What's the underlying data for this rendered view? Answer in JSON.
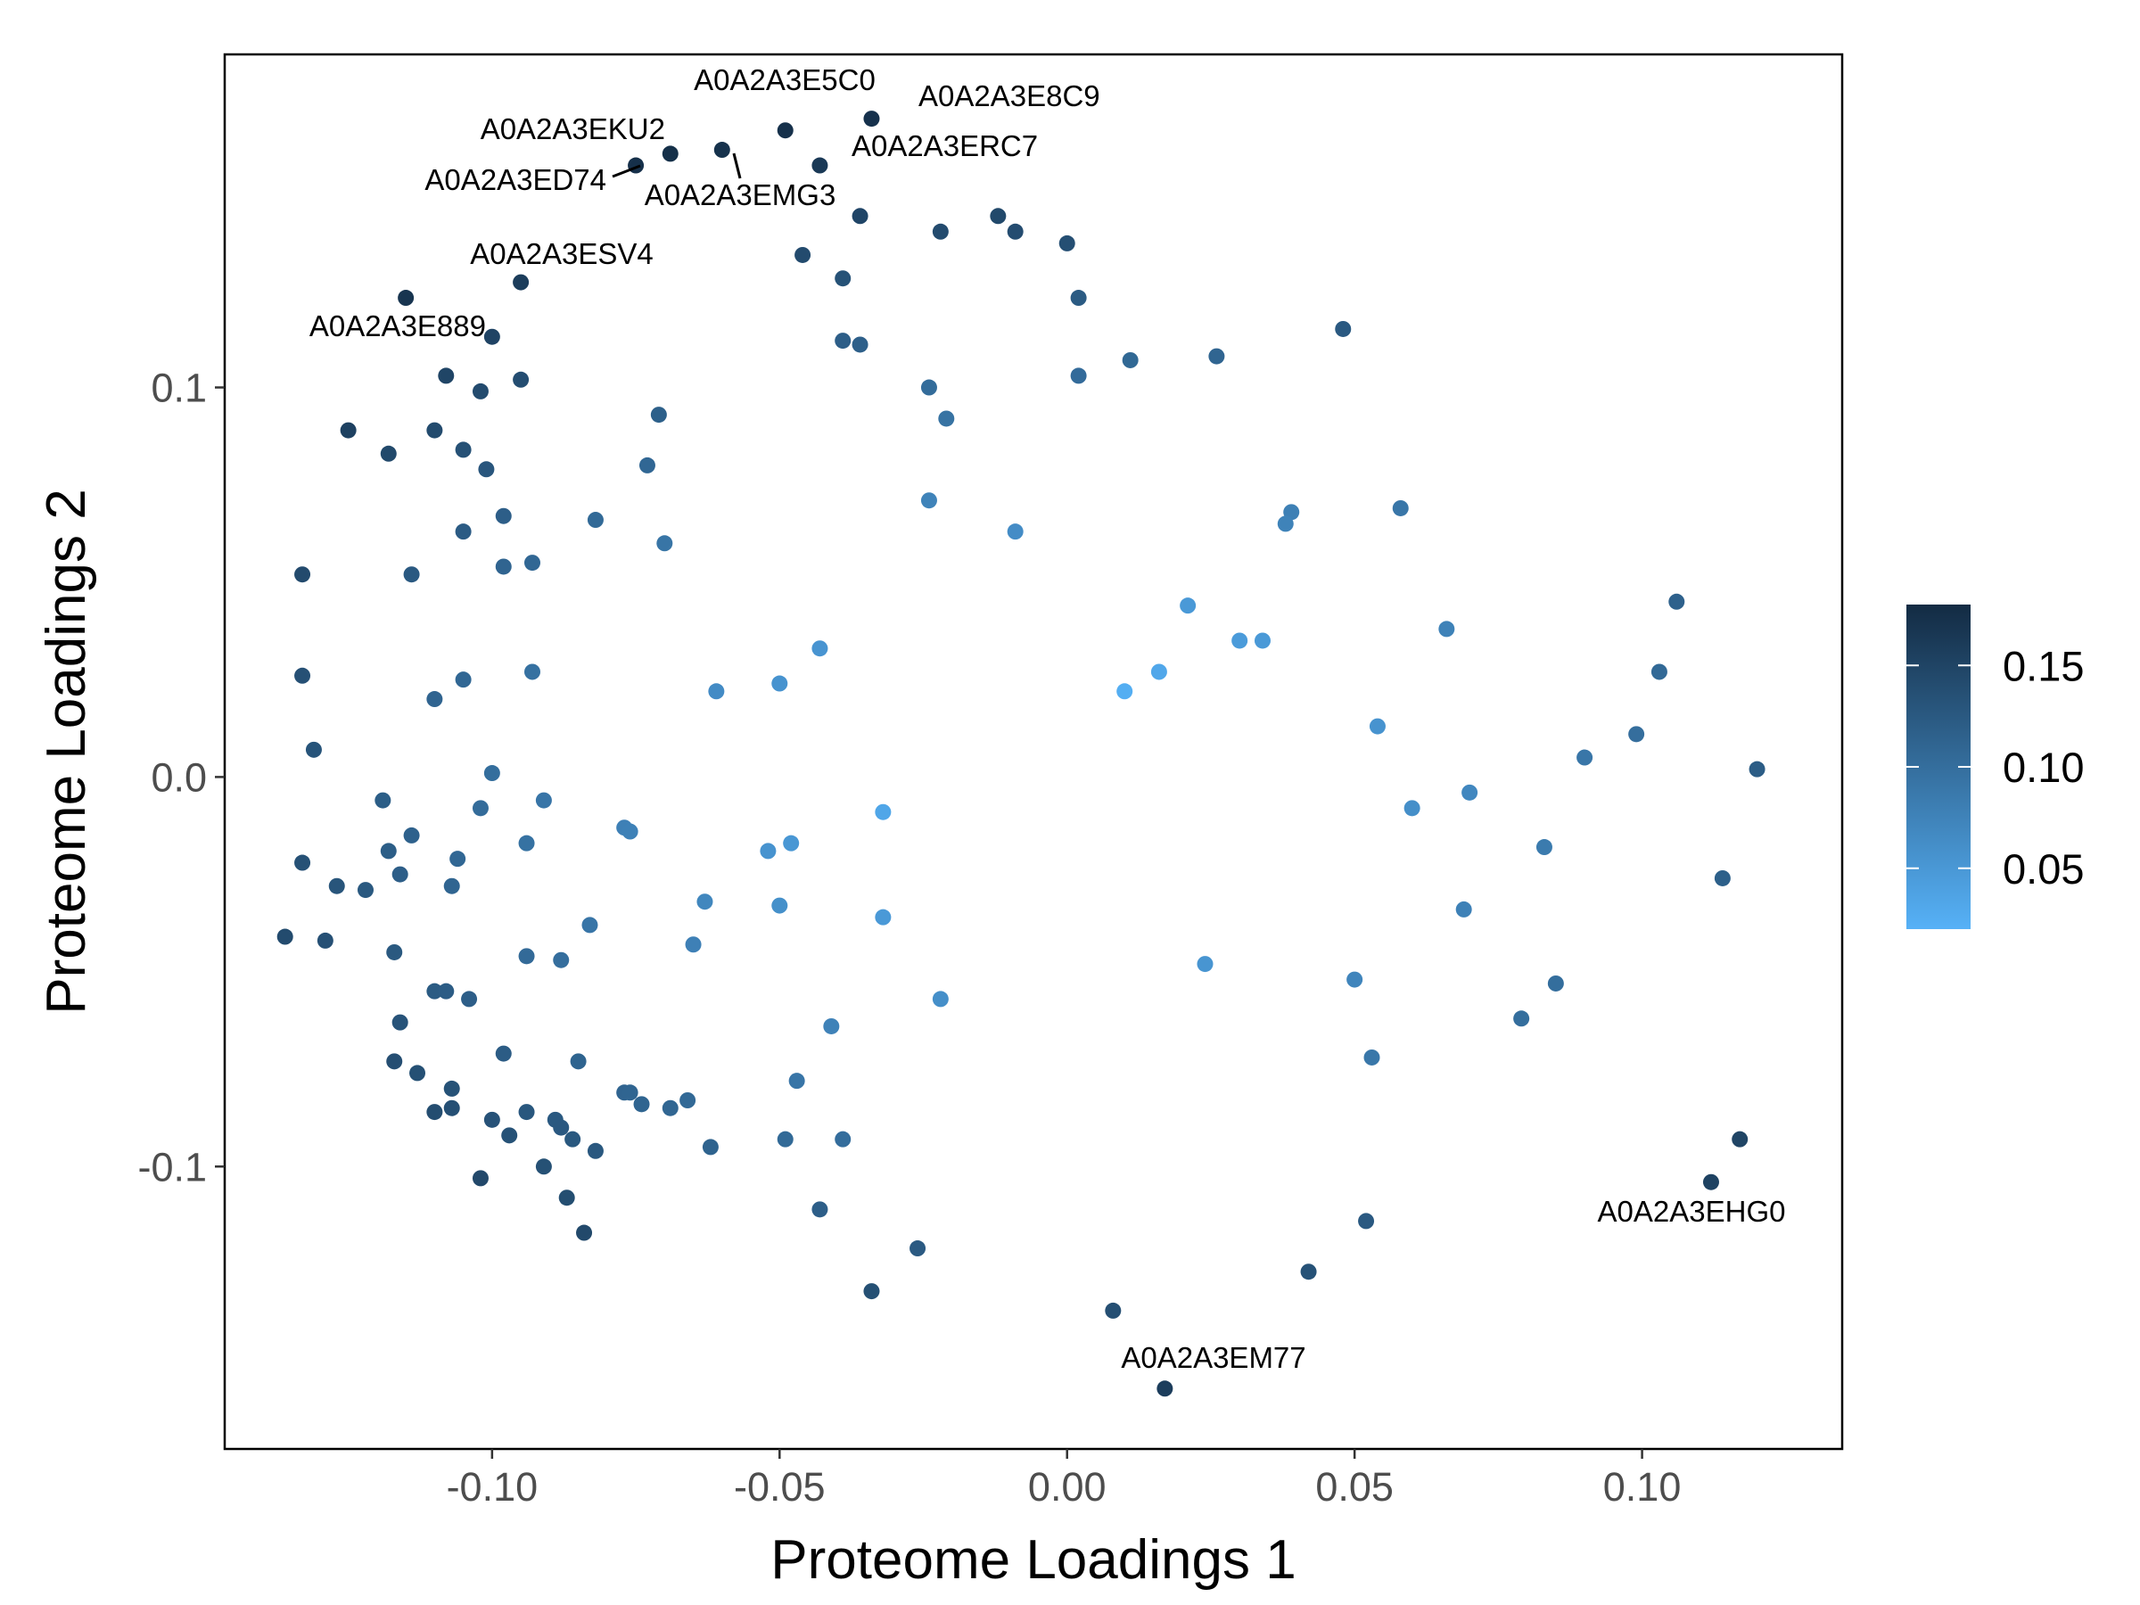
{
  "chart_data": {
    "type": "scatter",
    "xlabel": "Proteome Loadings 1",
    "ylabel": "Proteome Loadings 2",
    "xlim": [
      -0.1465,
      0.1348
    ],
    "ylim": [
      -0.1725,
      0.1855
    ],
    "x_ticks": [
      {
        "value": -0.1,
        "label": "-0.10"
      },
      {
        "value": -0.05,
        "label": "-0.05"
      },
      {
        "value": 0.0,
        "label": "0.00"
      },
      {
        "value": 0.05,
        "label": "0.05"
      },
      {
        "value": 0.1,
        "label": "0.10"
      }
    ],
    "y_ticks": [
      {
        "value": -0.1,
        "label": "-0.1"
      },
      {
        "value": 0.0,
        "label": "0.0"
      },
      {
        "value": 0.1,
        "label": "0.1"
      }
    ],
    "grid": false,
    "legend": {
      "placement": "right",
      "type": "colorbar",
      "min": 0.02,
      "max": 0.18,
      "ticks": [
        {
          "value": 0.05,
          "label": "0.05"
        },
        {
          "value": 0.1,
          "label": "0.10"
        },
        {
          "value": 0.15,
          "label": "0.15"
        }
      ],
      "color_low": "#56b1f7",
      "color_high": "#132b43"
    },
    "labeled_points": [
      {
        "label": "A0A2A3E5C0"
      },
      {
        "label": "A0A2A3E8C9"
      },
      {
        "label": "A0A2A3EKU2"
      },
      {
        "label": "A0A2A3ERC7"
      },
      {
        "label": "A0A2A3ED74"
      },
      {
        "label": "A0A2A3EMG3"
      },
      {
        "label": "A0A2A3ESV4"
      },
      {
        "label": "A0A2A3E889"
      },
      {
        "label": "A0A2A3EHG0"
      },
      {
        "label": "A0A2A3EM77"
      }
    ],
    "points": [
      [
        -0.049,
        0.166,
        null
      ],
      [
        -0.034,
        0.169,
        null
      ],
      [
        -0.069,
        0.16,
        null
      ],
      [
        -0.06,
        0.161,
        null
      ],
      [
        -0.043,
        0.157,
        null
      ],
      [
        -0.075,
        0.157,
        null
      ],
      [
        -0.036,
        0.144,
        null
      ],
      [
        -0.022,
        0.14,
        null
      ],
      [
        -0.012,
        0.144,
        null
      ],
      [
        -0.009,
        0.14,
        null
      ],
      [
        0.0,
        0.137,
        null
      ],
      [
        -0.046,
        0.134,
        null
      ],
      [
        -0.095,
        0.127,
        null
      ],
      [
        -0.115,
        0.123,
        null
      ],
      [
        -0.039,
        0.128,
        null
      ],
      [
        0.002,
        0.123,
        null
      ],
      [
        -0.1,
        0.113,
        null
      ],
      [
        -0.039,
        0.112,
        null
      ],
      [
        -0.036,
        0.111,
        null
      ],
      [
        0.048,
        0.115,
        null
      ],
      [
        0.011,
        0.107,
        null
      ],
      [
        0.026,
        0.108,
        null
      ],
      [
        0.002,
        0.103,
        null
      ],
      [
        -0.108,
        0.103,
        null
      ],
      [
        -0.095,
        0.102,
        null
      ],
      [
        -0.102,
        0.099,
        null
      ],
      [
        -0.024,
        0.1,
        null
      ],
      [
        -0.021,
        0.092,
        null
      ],
      [
        -0.071,
        0.093,
        null
      ],
      [
        -0.125,
        0.089,
        null
      ],
      [
        -0.11,
        0.089,
        null
      ],
      [
        -0.118,
        0.083,
        null
      ],
      [
        -0.105,
        0.084,
        null
      ],
      [
        -0.101,
        0.079,
        null
      ],
      [
        -0.073,
        0.08,
        null
      ],
      [
        -0.024,
        0.071,
        null
      ],
      [
        -0.098,
        0.067,
        null
      ],
      [
        -0.082,
        0.066,
        null
      ],
      [
        -0.009,
        0.063,
        null
      ],
      [
        0.039,
        0.068,
        null
      ],
      [
        0.038,
        0.065,
        null
      ],
      [
        0.058,
        0.069,
        null
      ],
      [
        -0.105,
        0.063,
        null
      ],
      [
        -0.07,
        0.06,
        null
      ],
      [
        -0.133,
        0.052,
        null
      ],
      [
        -0.114,
        0.052,
        null
      ],
      [
        -0.098,
        0.054,
        null
      ],
      [
        -0.093,
        0.055,
        null
      ],
      [
        0.021,
        0.044,
        null
      ],
      [
        0.106,
        0.045,
        null
      ],
      [
        0.066,
        0.038,
        null
      ],
      [
        0.03,
        0.035,
        null
      ],
      [
        0.034,
        0.035,
        null
      ],
      [
        -0.043,
        0.033,
        null
      ],
      [
        -0.133,
        0.026,
        null
      ],
      [
        -0.093,
        0.027,
        null
      ],
      [
        -0.105,
        0.025,
        null
      ],
      [
        0.016,
        0.027,
        null
      ],
      [
        0.103,
        0.027,
        null
      ],
      [
        -0.05,
        0.024,
        null
      ],
      [
        -0.061,
        0.022,
        null
      ],
      [
        0.01,
        0.022,
        null
      ],
      [
        -0.11,
        0.02,
        null
      ],
      [
        0.054,
        0.013,
        null
      ],
      [
        0.099,
        0.011,
        null
      ],
      [
        -0.131,
        0.007,
        null
      ],
      [
        0.09,
        0.005,
        null
      ],
      [
        0.12,
        0.002,
        null
      ],
      [
        -0.1,
        0.001,
        null
      ],
      [
        -0.119,
        -0.006,
        null
      ],
      [
        -0.091,
        -0.006,
        null
      ],
      [
        -0.102,
        -0.008,
        null
      ],
      [
        0.06,
        -0.008,
        null
      ],
      [
        0.07,
        -0.004,
        null
      ],
      [
        -0.032,
        -0.009,
        null
      ],
      [
        -0.077,
        -0.013,
        null
      ],
      [
        -0.076,
        -0.014,
        null
      ],
      [
        -0.114,
        -0.015,
        null
      ],
      [
        -0.094,
        -0.017,
        null
      ],
      [
        -0.048,
        -0.017,
        null
      ],
      [
        -0.118,
        -0.019,
        null
      ],
      [
        -0.052,
        -0.019,
        null
      ],
      [
        0.083,
        -0.018,
        null
      ],
      [
        -0.106,
        -0.021,
        null
      ],
      [
        -0.133,
        -0.022,
        null
      ],
      [
        -0.116,
        -0.025,
        null
      ],
      [
        0.114,
        -0.026,
        null
      ],
      [
        -0.127,
        -0.028,
        null
      ],
      [
        -0.122,
        -0.029,
        null
      ],
      [
        -0.107,
        -0.028,
        null
      ],
      [
        -0.063,
        -0.032,
        null
      ],
      [
        -0.05,
        -0.033,
        null
      ],
      [
        0.069,
        -0.034,
        null
      ],
      [
        -0.032,
        -0.036,
        null
      ],
      [
        -0.083,
        -0.038,
        null
      ],
      [
        -0.136,
        -0.041,
        null
      ],
      [
        -0.129,
        -0.042,
        null
      ],
      [
        -0.065,
        -0.043,
        null
      ],
      [
        -0.117,
        -0.045,
        null
      ],
      [
        -0.094,
        -0.046,
        null
      ],
      [
        -0.088,
        -0.047,
        null
      ],
      [
        0.024,
        -0.048,
        null
      ],
      [
        0.05,
        -0.052,
        null
      ],
      [
        0.085,
        -0.053,
        null
      ],
      [
        -0.11,
        -0.055,
        null
      ],
      [
        -0.108,
        -0.055,
        null
      ],
      [
        -0.104,
        -0.057,
        null
      ],
      [
        -0.022,
        -0.057,
        null
      ],
      [
        -0.116,
        -0.063,
        null
      ],
      [
        0.079,
        -0.062,
        null
      ],
      [
        -0.041,
        -0.064,
        null
      ],
      [
        -0.098,
        -0.071,
        null
      ],
      [
        0.053,
        -0.072,
        null
      ],
      [
        -0.117,
        -0.073,
        null
      ],
      [
        -0.085,
        -0.073,
        null
      ],
      [
        -0.113,
        -0.076,
        null
      ],
      [
        -0.047,
        -0.078,
        null
      ],
      [
        -0.107,
        -0.08,
        null
      ],
      [
        -0.077,
        -0.081,
        null
      ],
      [
        -0.076,
        -0.081,
        null
      ],
      [
        -0.074,
        -0.084,
        null
      ],
      [
        -0.066,
        -0.083,
        null
      ],
      [
        -0.11,
        -0.086,
        null
      ],
      [
        -0.107,
        -0.085,
        null
      ],
      [
        -0.094,
        -0.086,
        null
      ],
      [
        -0.069,
        -0.085,
        null
      ],
      [
        -0.1,
        -0.088,
        null
      ],
      [
        -0.089,
        -0.088,
        null
      ],
      [
        -0.088,
        -0.09,
        null
      ],
      [
        -0.097,
        -0.092,
        null
      ],
      [
        -0.086,
        -0.093,
        null
      ],
      [
        -0.049,
        -0.093,
        null
      ],
      [
        -0.039,
        -0.093,
        null
      ],
      [
        -0.062,
        -0.095,
        null
      ],
      [
        -0.082,
        -0.096,
        null
      ],
      [
        0.117,
        -0.093,
        null
      ],
      [
        -0.091,
        -0.1,
        null
      ],
      [
        -0.102,
        -0.103,
        null
      ],
      [
        0.112,
        -0.104,
        null
      ],
      [
        -0.087,
        -0.108,
        null
      ],
      [
        -0.043,
        -0.111,
        null
      ],
      [
        -0.084,
        -0.117,
        null
      ],
      [
        0.052,
        -0.114,
        null
      ],
      [
        -0.026,
        -0.121,
        null
      ],
      [
        0.042,
        -0.127,
        null
      ],
      [
        -0.034,
        -0.132,
        null
      ],
      [
        0.008,
        -0.137,
        null
      ],
      [
        0.017,
        -0.157,
        null
      ]
    ]
  }
}
